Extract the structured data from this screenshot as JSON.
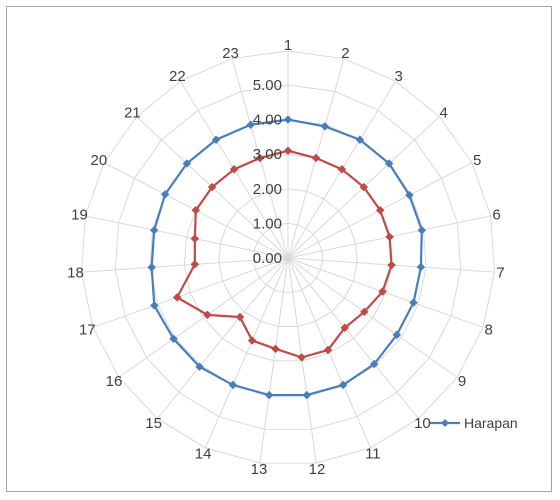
{
  "chart_data": {
    "type": "radar",
    "categories": [
      "1",
      "2",
      "3",
      "4",
      "5",
      "6",
      "7",
      "8",
      "9",
      "10",
      "11",
      "12",
      "13",
      "14",
      "15",
      "16",
      "17",
      "18",
      "19",
      "20",
      "21",
      "22",
      "23"
    ],
    "rlim": [
      0,
      5
    ],
    "ticks": [
      "0.00",
      "1.00",
      "2.00",
      "3.00",
      "4.00",
      "5.00"
    ],
    "series": [
      {
        "name": "Harapan",
        "color": "#4a7ebb",
        "marker": "diamond",
        "values": [
          4.0,
          3.95,
          4.0,
          4.0,
          3.95,
          3.95,
          3.85,
          3.85,
          3.85,
          3.95,
          4.0,
          4.0,
          4.0,
          4.0,
          4.05,
          4.05,
          4.1,
          3.95,
          3.95,
          4.0,
          4.0,
          4.0,
          4.0
        ]
      },
      {
        "name": "",
        "color": "#be4b48",
        "marker": "diamond",
        "values": [
          3.1,
          3.0,
          3.0,
          3.0,
          3.0,
          3.0,
          3.0,
          2.9,
          2.7,
          2.6,
          2.9,
          2.9,
          2.65,
          2.6,
          2.2,
          2.85,
          3.4,
          2.7,
          2.75,
          3.0,
          3.0,
          3.0,
          3.0
        ]
      }
    ],
    "legend": "right",
    "grid": true
  }
}
